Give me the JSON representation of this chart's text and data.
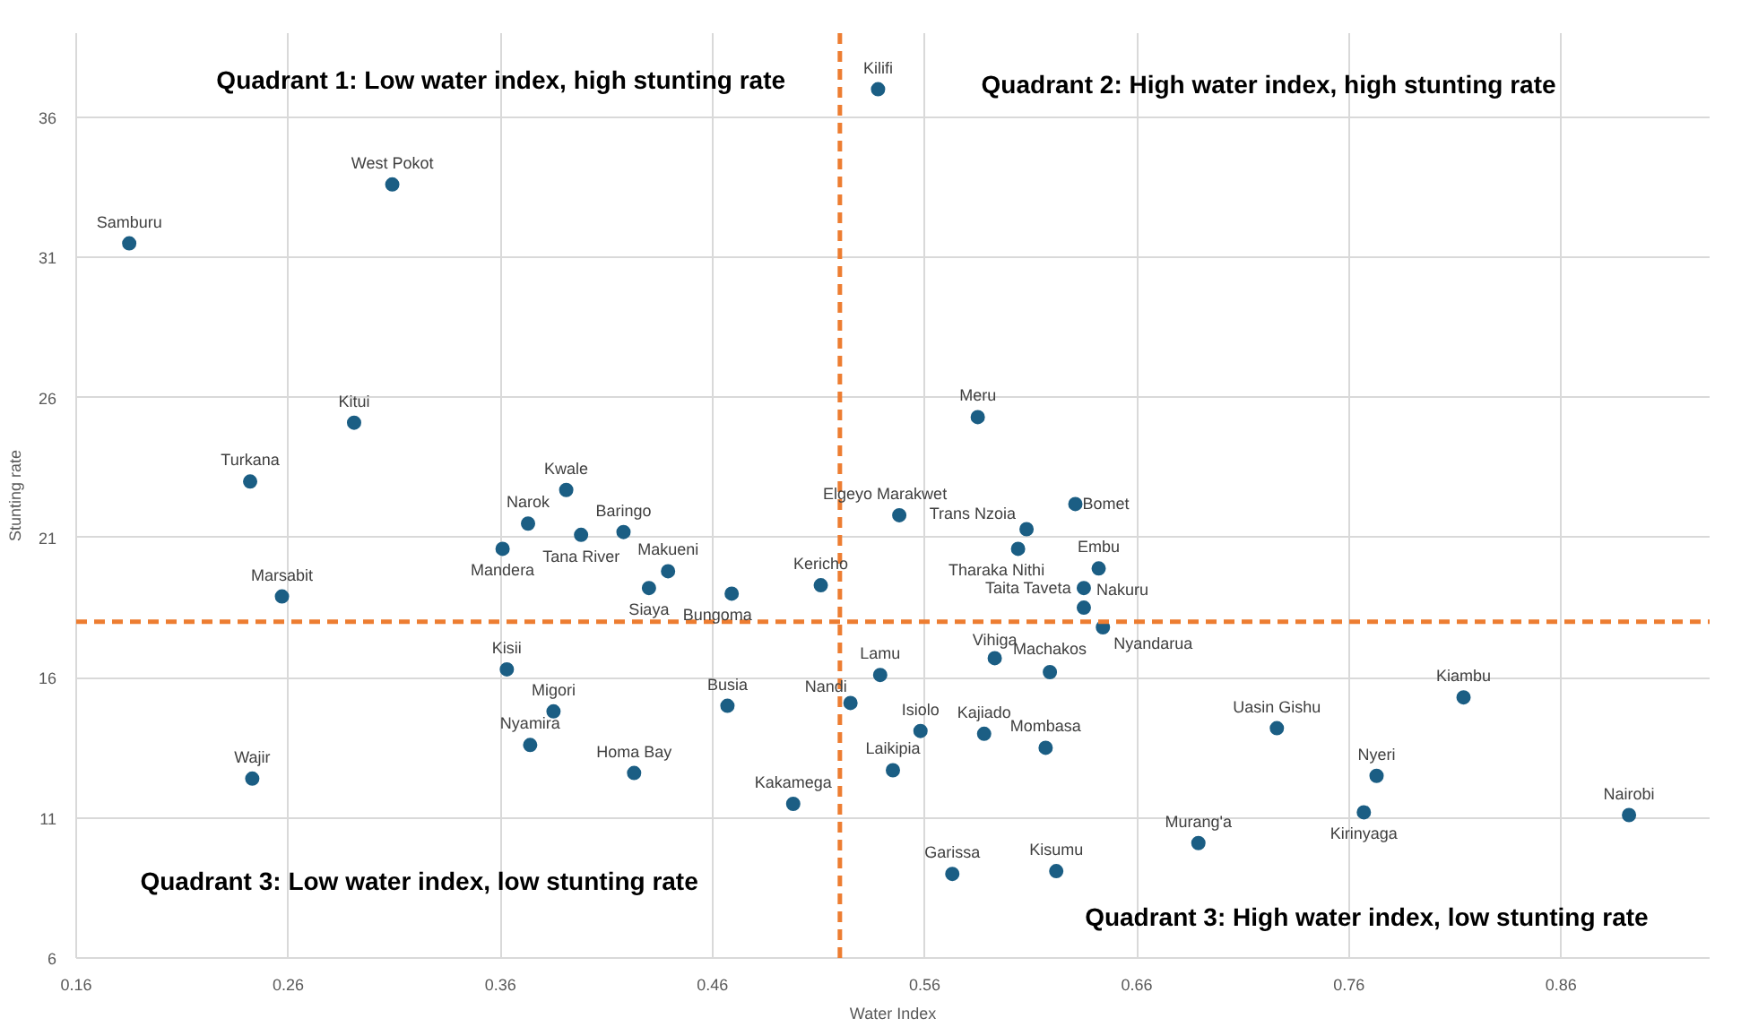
{
  "chart_data": {
    "type": "scatter",
    "xlabel": "Water Index",
    "ylabel": "Stunting rate",
    "xlim": [
      0.16,
      0.93
    ],
    "xticks": [
      0.16,
      0.26,
      0.36,
      0.46,
      0.56,
      0.66,
      0.76,
      0.86
    ],
    "ylim": [
      6,
      39
    ],
    "yticks": [
      6,
      11,
      16,
      21,
      26,
      31,
      36
    ],
    "grid": true,
    "marker": "circle",
    "x": [
      0.291,
      0.242,
      0.391,
      0.373,
      0.398,
      0.418,
      0.361,
      0.439,
      0.43,
      0.469,
      0.511,
      0.257,
      0.363,
      0.385,
      0.467,
      0.525,
      0.374,
      0.423,
      0.243,
      0.498,
      0.585,
      0.548,
      0.631,
      0.608,
      0.604,
      0.642,
      0.635,
      0.635,
      0.644,
      0.593,
      0.619,
      0.539,
      0.558,
      0.588,
      0.617,
      0.545,
      0.726,
      0.814,
      0.773,
      0.767,
      0.892,
      0.689,
      0.573,
      0.622,
      0.538,
      0.309,
      0.185
    ],
    "series": [
      {
        "color": "#1b5e84",
        "values": [
          25.1,
          23.0,
          22.7,
          21.5,
          21.1,
          21.2,
          20.6,
          19.8,
          19.2,
          19.0,
          19.3,
          18.9,
          16.3,
          14.8,
          15.0,
          15.1,
          13.6,
          12.6,
          12.4,
          11.5,
          25.3,
          21.8,
          22.2,
          21.3,
          20.6,
          19.9,
          19.2,
          18.5,
          17.8,
          16.7,
          16.2,
          16.1,
          14.1,
          14.0,
          13.5,
          12.7,
          14.2,
          15.3,
          12.5,
          11.2,
          11.1,
          10.1,
          9.0,
          9.1,
          37.0,
          33.6,
          31.5
        ],
        "value_labels": [
          "Kitui",
          "Turkana",
          "Kwale",
          "Narok",
          "Tana River",
          "Baringo",
          "Mandera",
          "Makueni",
          "Siaya",
          "Bungoma",
          "Kericho",
          "Marsabit",
          "Kisii",
          "Migori",
          "Busia",
          "Nandi",
          "Nyamira",
          "Homa Bay",
          "Wajir",
          "Kakamega",
          "Meru",
          "Elgeyo Marakwet",
          "Bomet",
          "Trans Nzoia",
          "Tharaka Nithi",
          "Embu",
          "Taita Taveta",
          "Nakuru",
          "Nyandarua",
          "Vihiga",
          "Machakos",
          "Lamu",
          "Isiolo",
          "Kajiado",
          "Mombasa",
          "Laikipia",
          "Uasin Gishu",
          "Kiambu",
          "Nyeri",
          "Kirinyaga",
          "Nairobi",
          "Murang'a",
          "Garissa",
          "Kisumu",
          "Kilifi",
          "West Pokot",
          "Samburu"
        ]
      }
    ],
    "ref_lines": [
      {
        "axis": "x",
        "value": 0.52,
        "color": "#ed7d31",
        "line_style": "dashed"
      },
      {
        "axis": "y",
        "value": 18,
        "color": "#ed7d31",
        "line_style": "dashed"
      }
    ],
    "annotations": [
      "Quadrant 1: Low water index, high stunting rate",
      "Quadrant 2: High water index, high stunting rate",
      "Quadrant 3: Low water index, low stunting rate",
      "Quadrant 3: High water index, low stunting rate"
    ]
  }
}
